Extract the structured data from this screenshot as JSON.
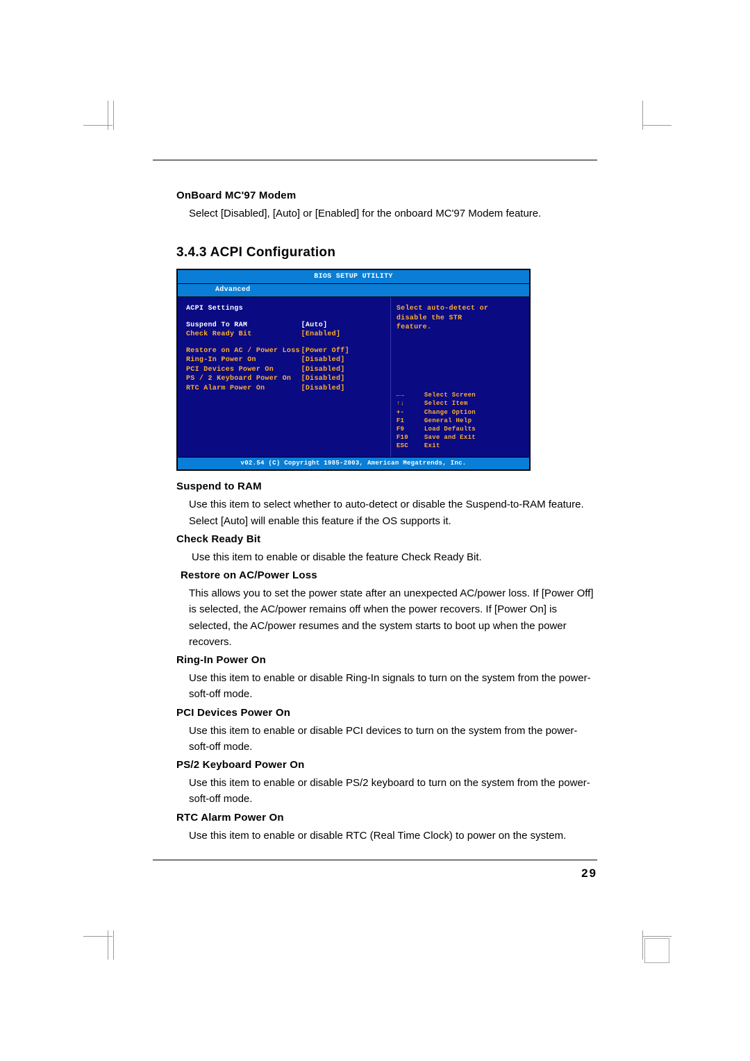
{
  "top_section": {
    "heading": "OnBoard MC'97 Modem",
    "body": "Select [Disabled], [Auto] or [Enabled] for the onboard MC'97 Modem feature."
  },
  "section_title": "3.4.3 ACPI Configuration",
  "bios": {
    "title": "BIOS SETUP UTILITY",
    "tab": "Advanced",
    "heading": "ACPI Settings",
    "help_text_1": "Select auto-detect or",
    "help_text_2": "disable the STR",
    "help_text_3": "feature.",
    "settings": [
      {
        "label": "Suspend To RAM",
        "value": "[Auto]",
        "hl": true
      },
      {
        "label": "Check Ready Bit",
        "value": "[Enabled]"
      }
    ],
    "settings2": [
      {
        "label": "Restore on AC / Power Loss",
        "value": "[Power Off]"
      },
      {
        "label": "Ring-In Power On",
        "value": "[Disabled]"
      },
      {
        "label": "PCI Devices Power On",
        "value": "[Disabled]"
      },
      {
        "label": "PS / 2 Keyboard Power On",
        "value": "[Disabled]"
      },
      {
        "label": "RTC Alarm Power On",
        "value": "[Disabled]"
      }
    ],
    "nav": [
      {
        "k": "←→",
        "v": "Select Screen"
      },
      {
        "k": "↑↓",
        "v": "Select Item"
      },
      {
        "k": "+-",
        "v": "Change Option"
      },
      {
        "k": "F1",
        "v": "General Help"
      },
      {
        "k": "F9",
        "v": "Load Defaults"
      },
      {
        "k": "F10",
        "v": "Save and Exit"
      },
      {
        "k": "ESC",
        "v": "Exit"
      }
    ],
    "footer": "v02.54 (C) Copyright 1985-2003, American Megatrends, Inc."
  },
  "items": [
    {
      "heading": "Suspend to RAM",
      "body": "Use this item to select whether to auto-detect or disable the Suspend-to-RAM feature. Select [Auto] will enable this feature if the OS supports it."
    },
    {
      "heading": "Check Ready Bit",
      "body": "Use this item to enable or disable the feature Check Ready Bit."
    },
    {
      "heading": "Restore on AC/Power Loss",
      "body": "This allows you to set the power state after an unexpected AC/power loss. If [Power Off] is selected, the AC/power remains off when the power recovers. If [Power On] is selected, the AC/power resumes and the system starts to boot up when the power recovers."
    },
    {
      "heading": "Ring-In Power On",
      "body": "Use this item to enable or disable Ring-In signals to turn on the system from the power-soft-off mode."
    },
    {
      "heading": "PCI Devices Power On",
      "body": "Use this item to enable or disable PCI devices to turn on the system from the power-soft-off mode."
    },
    {
      "heading": "PS/2 Keyboard Power On",
      "body": "Use this item to enable or disable PS/2 keyboard to turn on the system from the power-soft-off mode."
    },
    {
      "heading": "RTC Alarm Power On",
      "body": "Use this item to enable or disable RTC (Real Time Clock) to power on the system."
    }
  ],
  "page_number": "29",
  "colors": {
    "bios_bg": "#0a0a82",
    "bios_bar": "#0a7ed6",
    "bios_orange": "#ffb030"
  }
}
